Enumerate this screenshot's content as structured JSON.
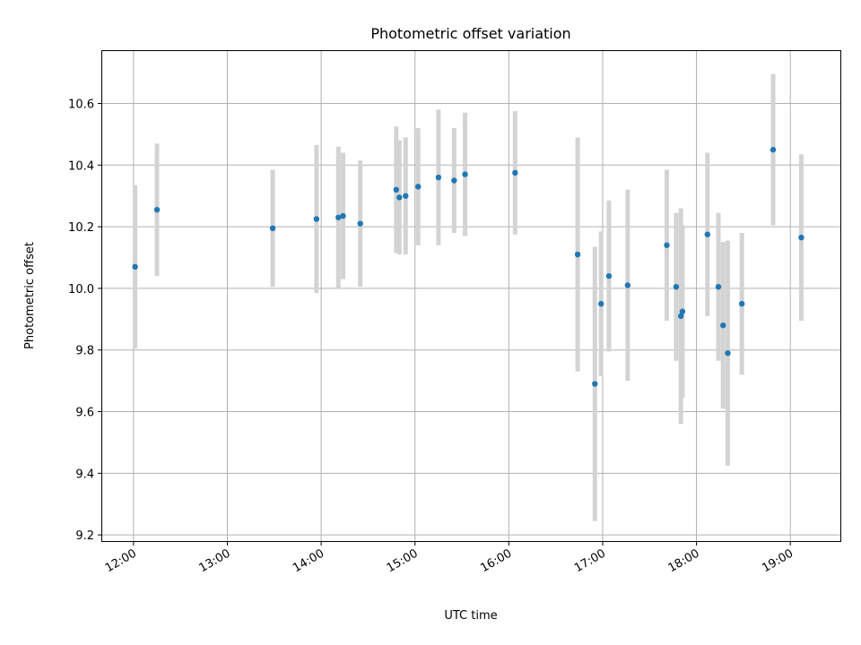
{
  "chart_data": {
    "type": "scatter",
    "title": "Photometric offset variation",
    "xlabel": "UTC time",
    "ylabel": "Photometric offset",
    "x_axis_type": "time",
    "xlim": [
      "11:40",
      "19:32"
    ],
    "ylim": [
      9.18,
      10.77
    ],
    "x_ticks": [
      "12:00",
      "13:00",
      "14:00",
      "15:00",
      "16:00",
      "17:00",
      "18:00",
      "19:00"
    ],
    "y_ticks": [
      9.2,
      9.4,
      9.6,
      9.8,
      10.0,
      10.2,
      10.4,
      10.6
    ],
    "y_tick_labels": [
      "9.2",
      "9.4",
      "9.6",
      "9.8",
      "10.0",
      "10.2",
      "10.4",
      "10.6"
    ],
    "grid": true,
    "legend": false,
    "marker_color": "#1f77b4",
    "errorbar_color": "#d3d3d3",
    "points": [
      {
        "time": "12:01",
        "y": 10.07,
        "err": 0.265
      },
      {
        "time": "12:15",
        "y": 10.255,
        "err": 0.215
      },
      {
        "time": "13:29",
        "y": 10.195,
        "err": 0.19
      },
      {
        "time": "13:57",
        "y": 10.225,
        "err": 0.24
      },
      {
        "time": "14:11",
        "y": 10.23,
        "err": 0.23
      },
      {
        "time": "14:14",
        "y": 10.235,
        "err": 0.205
      },
      {
        "time": "14:25",
        "y": 10.21,
        "err": 0.205
      },
      {
        "time": "14:48",
        "y": 10.32,
        "err": 0.205
      },
      {
        "time": "14:50",
        "y": 10.295,
        "err": 0.185
      },
      {
        "time": "14:54",
        "y": 10.3,
        "err": 0.19
      },
      {
        "time": "15:02",
        "y": 10.33,
        "err": 0.19
      },
      {
        "time": "15:15",
        "y": 10.36,
        "err": 0.22
      },
      {
        "time": "15:25",
        "y": 10.35,
        "err": 0.17
      },
      {
        "time": "15:32",
        "y": 10.37,
        "err": 0.2
      },
      {
        "time": "16:04",
        "y": 10.375,
        "err": 0.2
      },
      {
        "time": "16:44",
        "y": 10.11,
        "err": 0.38
      },
      {
        "time": "16:55",
        "y": 9.69,
        "err": 0.445
      },
      {
        "time": "16:59",
        "y": 9.95,
        "err": 0.235
      },
      {
        "time": "17:04",
        "y": 10.04,
        "err": 0.245
      },
      {
        "time": "17:16",
        "y": 10.01,
        "err": 0.31
      },
      {
        "time": "17:41",
        "y": 10.14,
        "err": 0.245
      },
      {
        "time": "17:47",
        "y": 10.005,
        "err": 0.24
      },
      {
        "time": "17:50",
        "y": 9.91,
        "err": 0.35
      },
      {
        "time": "17:51",
        "y": 9.925,
        "err": 0.28
      },
      {
        "time": "18:07",
        "y": 10.175,
        "err": 0.265
      },
      {
        "time": "18:14",
        "y": 10.005,
        "err": 0.24
      },
      {
        "time": "18:17",
        "y": 9.88,
        "err": 0.27
      },
      {
        "time": "18:20",
        "y": 9.79,
        "err": 0.365
      },
      {
        "time": "18:29",
        "y": 9.95,
        "err": 0.23
      },
      {
        "time": "18:49",
        "y": 10.45,
        "err": 0.245
      },
      {
        "time": "19:07",
        "y": 10.165,
        "err": 0.27
      }
    ]
  }
}
